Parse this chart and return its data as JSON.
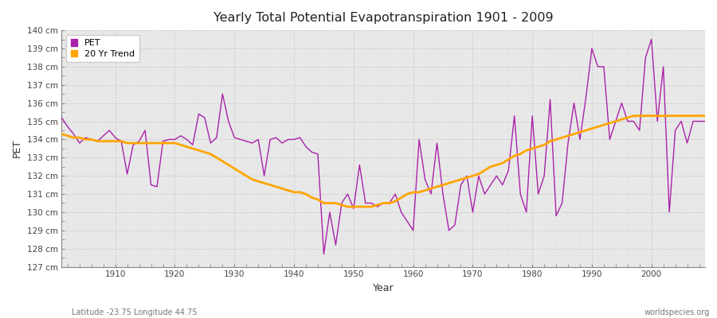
{
  "title": "Yearly Total Potential Evapotranspiration 1901 - 2009",
  "xlabel": "Year",
  "ylabel": "PET",
  "footnote_left": "Latitude -23.75 Longitude 44.75",
  "footnote_right": "worldspecies.org",
  "pet_color": "#aa22aa",
  "trend_color": "#ffa500",
  "background_color": "#ffffff",
  "plot_bg_color": "#e8e8e8",
  "ylim": [
    127,
    140
  ],
  "years": [
    1901,
    1902,
    1903,
    1904,
    1905,
    1906,
    1907,
    1908,
    1909,
    1910,
    1911,
    1912,
    1913,
    1914,
    1915,
    1916,
    1917,
    1918,
    1919,
    1920,
    1921,
    1922,
    1923,
    1924,
    1925,
    1926,
    1927,
    1928,
    1929,
    1930,
    1931,
    1932,
    1933,
    1934,
    1935,
    1936,
    1937,
    1938,
    1939,
    1940,
    1941,
    1942,
    1943,
    1944,
    1945,
    1946,
    1947,
    1948,
    1949,
    1950,
    1951,
    1952,
    1953,
    1954,
    1955,
    1956,
    1957,
    1958,
    1959,
    1960,
    1961,
    1962,
    1963,
    1964,
    1965,
    1966,
    1967,
    1968,
    1969,
    1970,
    1971,
    1972,
    1973,
    1974,
    1975,
    1976,
    1977,
    1978,
    1979,
    1980,
    1981,
    1982,
    1983,
    1984,
    1985,
    1986,
    1987,
    1988,
    1989,
    1990,
    1991,
    1992,
    1993,
    1994,
    1995,
    1996,
    1997,
    1998,
    1999,
    2000,
    2001,
    2002,
    2003,
    2004,
    2005,
    2006,
    2007,
    2008,
    2009
  ],
  "pet_values": [
    135.2,
    134.7,
    134.3,
    133.8,
    134.1,
    134.0,
    133.9,
    134.2,
    134.5,
    134.1,
    133.9,
    132.1,
    133.7,
    133.9,
    134.5,
    131.5,
    131.4,
    133.9,
    134.0,
    134.0,
    134.2,
    134.0,
    133.7,
    135.4,
    135.2,
    133.8,
    134.1,
    136.5,
    135.0,
    134.1,
    134.0,
    133.9,
    133.8,
    134.0,
    132.0,
    134.0,
    134.1,
    133.8,
    134.0,
    134.0,
    134.1,
    133.6,
    133.3,
    133.2,
    127.7,
    130.0,
    128.2,
    130.5,
    131.0,
    130.2,
    132.6,
    130.5,
    130.5,
    130.3,
    130.5,
    130.5,
    131.0,
    130.0,
    129.5,
    129.0,
    134.0,
    131.8,
    131.0,
    133.8,
    131.0,
    129.0,
    129.3,
    131.5,
    132.0,
    130.0,
    132.0,
    131.0,
    131.5,
    132.0,
    131.5,
    132.3,
    135.3,
    131.0,
    130.0,
    135.3,
    131.0,
    132.0,
    136.2,
    129.8,
    130.5,
    133.8,
    136.0,
    134.0,
    136.3,
    139.0,
    138.0,
    138.0,
    134.0,
    135.0,
    136.0,
    135.0,
    135.0,
    134.5,
    138.5,
    139.5,
    135.0,
    138.0,
    130.0,
    134.5,
    135.0,
    133.8,
    135.0,
    135.0,
    135.0
  ],
  "trend_values": [
    134.3,
    134.2,
    134.1,
    134.1,
    134.0,
    134.0,
    133.9,
    133.9,
    133.9,
    133.9,
    133.9,
    133.8,
    133.8,
    133.8,
    133.8,
    133.8,
    133.8,
    133.8,
    133.8,
    133.8,
    133.7,
    133.6,
    133.5,
    133.4,
    133.3,
    133.2,
    133.0,
    132.8,
    132.6,
    132.4,
    132.2,
    132.0,
    131.8,
    131.7,
    131.6,
    131.5,
    131.4,
    131.3,
    131.2,
    131.1,
    131.1,
    131.0,
    130.8,
    130.7,
    130.5,
    130.5,
    130.5,
    130.4,
    130.3,
    130.3,
    130.3,
    130.3,
    130.3,
    130.4,
    130.5,
    130.5,
    130.6,
    130.8,
    131.0,
    131.1,
    131.1,
    131.2,
    131.3,
    131.4,
    131.5,
    131.6,
    131.7,
    131.8,
    131.9,
    132.0,
    132.1,
    132.3,
    132.5,
    132.6,
    132.7,
    132.9,
    133.1,
    133.2,
    133.4,
    133.5,
    133.6,
    133.7,
    133.9,
    134.0,
    134.1,
    134.2,
    134.3,
    134.4,
    134.5,
    134.6,
    134.7,
    134.8,
    134.9,
    135.0,
    135.1,
    135.2,
    135.3,
    135.3,
    135.3,
    135.3,
    135.3,
    135.3,
    135.3,
    135.3,
    135.3,
    135.3,
    135.3,
    135.3,
    135.3
  ]
}
